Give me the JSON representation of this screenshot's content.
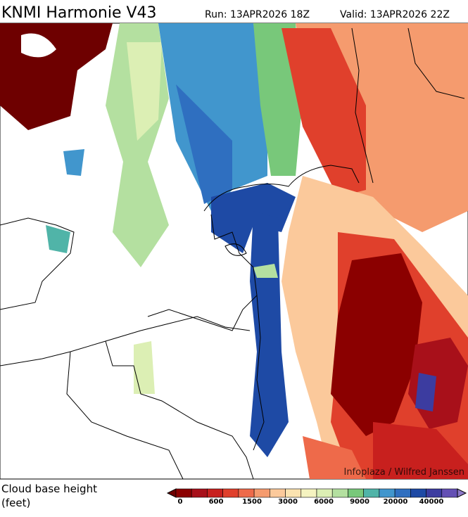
{
  "header": {
    "title": "KNMI Harmonie V43",
    "run": "Run: 13APR2026 18Z",
    "valid": "Valid: 13APR2026 22Z"
  },
  "map": {
    "credit": "Infoplaza / Wilfred Janssen"
  },
  "legend": {
    "title": "Cloud base height",
    "unit": "(feet)",
    "labels": [
      "0",
      "600",
      "1500",
      "3000",
      "6000",
      "9000",
      "20000",
      "40000"
    ],
    "colors": [
      "#6e0000",
      "#8b0000",
      "#a8101a",
      "#c8201e",
      "#e0402c",
      "#ee6a4a",
      "#f59b6e",
      "#fbc99b",
      "#fbe3b0",
      "#f5f3c0",
      "#dcefb4",
      "#b4e0a0",
      "#78c87a",
      "#50b4a8",
      "#4196cd",
      "#2f6fc0",
      "#1e4aa5",
      "#3c3ca0",
      "#6450b4",
      "#8c78c8"
    ]
  }
}
